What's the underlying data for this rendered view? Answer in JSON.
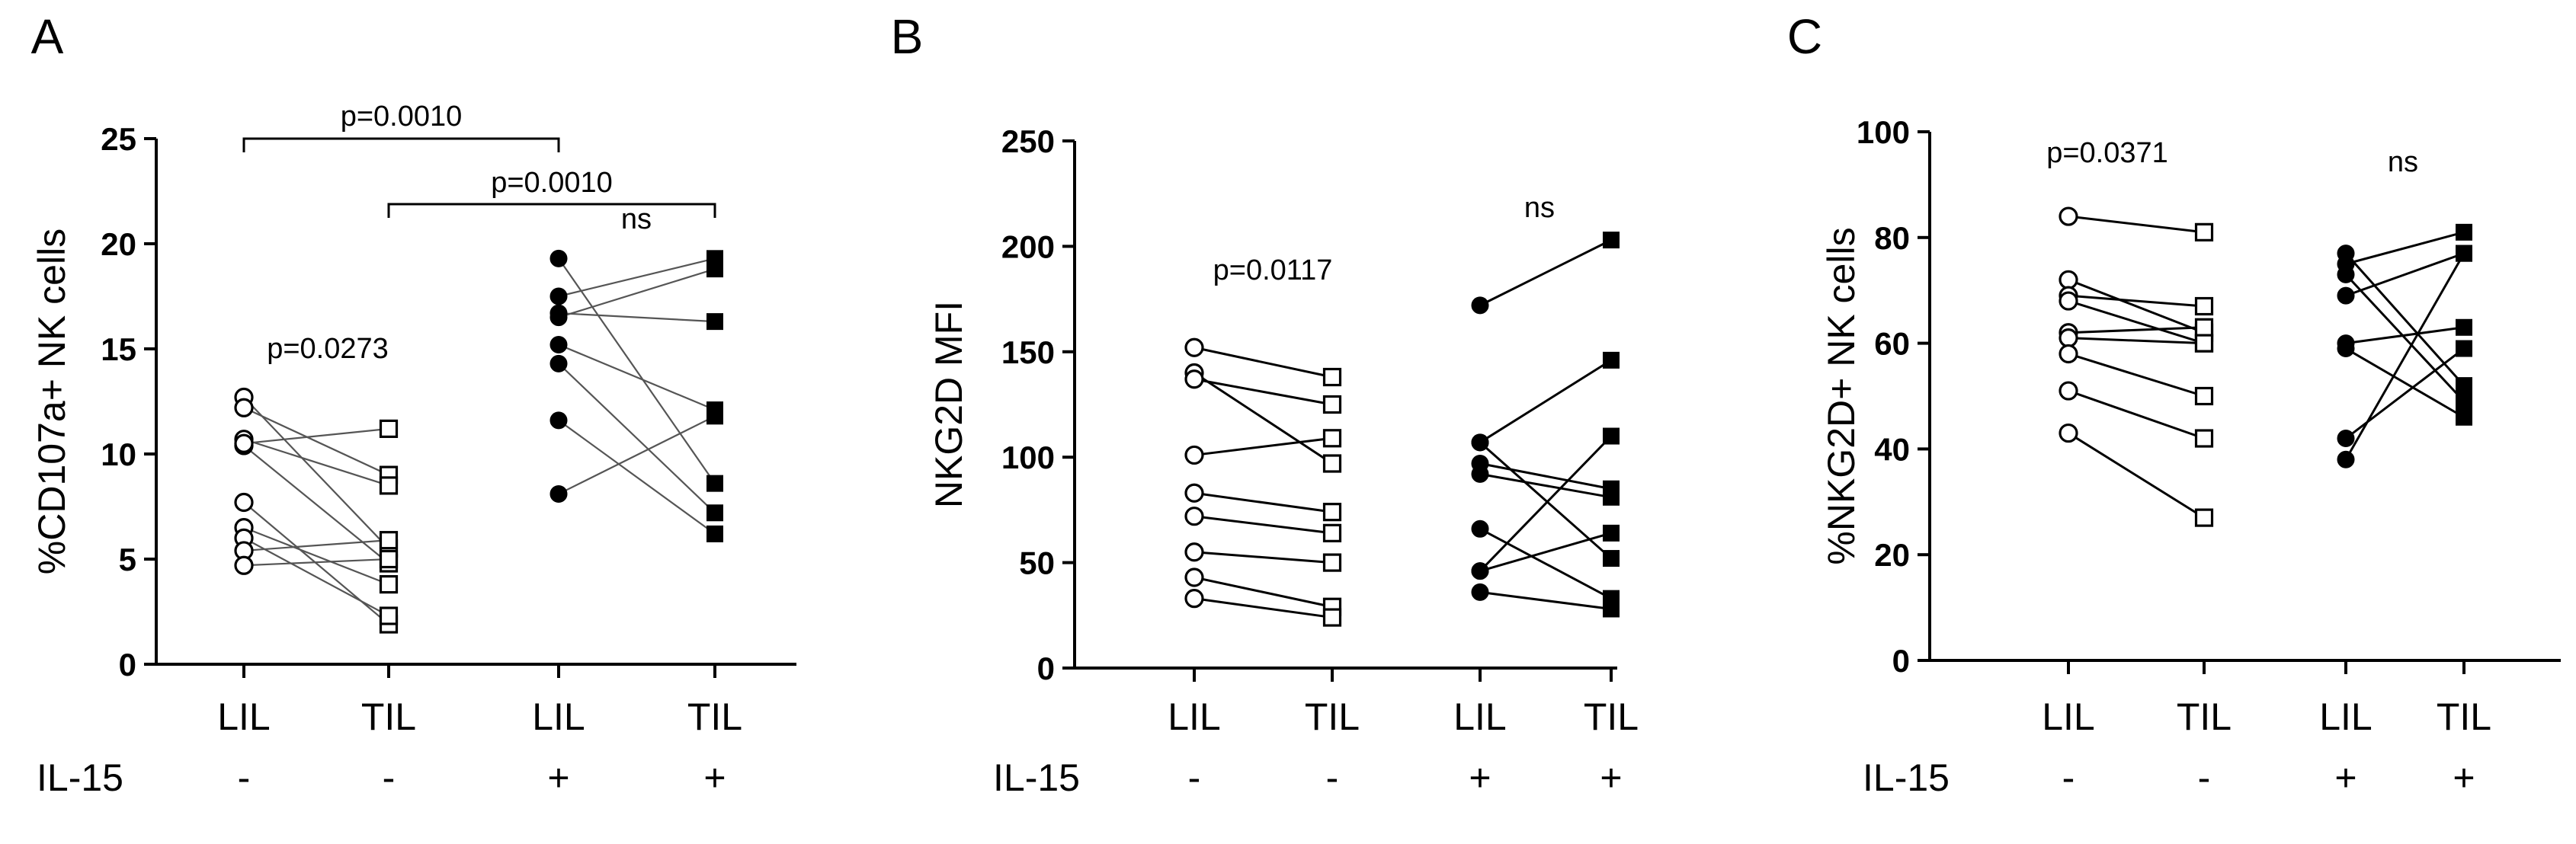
{
  "chart_data": [
    {
      "type": "scatter",
      "panel": "A",
      "ylabel": "%CD107a+ NK cells",
      "ylim": [
        0,
        25
      ],
      "yticks": [
        0,
        5,
        10,
        15,
        20,
        25
      ],
      "categories": [
        "LIL",
        "TIL",
        "LIL",
        "TIL"
      ],
      "treatment_label": "IL-15",
      "treatment": [
        "-",
        "-",
        "+",
        "+"
      ],
      "paired_series": [
        {
          "name": "IL-15 -",
          "x": [
            "LIL",
            "TIL"
          ],
          "markers": [
            "open-circle",
            "open-square"
          ],
          "pairs": [
            [
              12.7,
              5.5
            ],
            [
              12.2,
              9.0
            ],
            [
              10.7,
              8.5
            ],
            [
              10.4,
              4.8
            ],
            [
              7.7,
              1.9
            ],
            [
              6.5,
              3.8
            ],
            [
              6.0,
              2.3
            ],
            [
              5.4,
              5.9
            ],
            [
              4.7,
              5.0
            ],
            [
              10.5,
              11.2
            ]
          ]
        },
        {
          "name": "IL-15 +",
          "x": [
            "LIL",
            "TIL"
          ],
          "markers": [
            "filled-circle",
            "filled-square"
          ],
          "pairs": [
            [
              19.3,
              8.6
            ],
            [
              17.5,
              19.3
            ],
            [
              16.7,
              16.3
            ],
            [
              16.5,
              18.8
            ],
            [
              15.2,
              12.1
            ],
            [
              14.3,
              7.2
            ],
            [
              11.6,
              6.2
            ],
            [
              8.1,
              11.8
            ]
          ]
        }
      ],
      "annotations": [
        {
          "text": "p=0.0010",
          "from": 0,
          "to": 2
        },
        {
          "text": "p=0.0010",
          "from": 1,
          "to": 3
        },
        {
          "text": "p=0.0273",
          "over": [
            0,
            1
          ]
        },
        {
          "text": "ns",
          "over": [
            2,
            3
          ]
        }
      ]
    },
    {
      "type": "scatter",
      "panel": "B",
      "ylabel": "NKG2D MFI",
      "ylim": [
        0,
        250
      ],
      "yticks": [
        0,
        50,
        100,
        150,
        200,
        250
      ],
      "categories": [
        "LIL",
        "TIL",
        "LIL",
        "TIL"
      ],
      "treatment_label": "IL-15",
      "treatment": [
        "-",
        "-",
        "+",
        "+"
      ],
      "paired_series": [
        {
          "name": "IL-15 -",
          "x": [
            "LIL",
            "TIL"
          ],
          "markers": [
            "open-circle",
            "open-square"
          ],
          "pairs": [
            [
              152,
              138
            ],
            [
              140,
              97
            ],
            [
              137,
              125
            ],
            [
              101,
              109
            ],
            [
              83,
              74
            ],
            [
              72,
              64
            ],
            [
              55,
              50
            ],
            [
              43,
              29
            ],
            [
              33,
              24
            ]
          ]
        },
        {
          "name": "IL-15 +",
          "x": [
            "LIL",
            "TIL"
          ],
          "markers": [
            "filled-circle",
            "filled-square"
          ],
          "pairs": [
            [
              172,
              203
            ],
            [
              107,
              146
            ],
            [
              97,
              85
            ],
            [
              92,
              81
            ],
            [
              66,
              33
            ],
            [
              46,
              110
            ],
            [
              36,
              28
            ],
            [
              46,
              64
            ],
            [
              107,
              52
            ]
          ]
        }
      ],
      "annotations": [
        {
          "text": "p=0.0117",
          "over": [
            0,
            1
          ]
        },
        {
          "text": "ns",
          "over": [
            2,
            3
          ]
        }
      ]
    },
    {
      "type": "scatter",
      "panel": "C",
      "ylabel": "%NKG2D+ NK cells",
      "ylim": [
        0,
        100
      ],
      "yticks": [
        0,
        20,
        40,
        60,
        80,
        100
      ],
      "categories": [
        "LIL",
        "TIL",
        "LIL",
        "TIL"
      ],
      "treatment_label": "IL-15",
      "treatment": [
        "-",
        "-",
        "+",
        "+"
      ],
      "paired_series": [
        {
          "name": "IL-15 -",
          "x": [
            "LIL",
            "TIL"
          ],
          "markers": [
            "open-circle",
            "open-square"
          ],
          "pairs": [
            [
              84,
              81
            ],
            [
              72,
              62
            ],
            [
              69,
              67
            ],
            [
              68,
              60
            ],
            [
              62,
              63
            ],
            [
              61,
              60
            ],
            [
              58,
              50
            ],
            [
              51,
              42
            ],
            [
              43,
              27
            ]
          ]
        },
        {
          "name": "IL-15 +",
          "x": [
            "LIL",
            "TIL"
          ],
          "markers": [
            "filled-circle",
            "filled-square"
          ],
          "pairs": [
            [
              77,
              52
            ],
            [
              75,
              81
            ],
            [
              73,
              49
            ],
            [
              69,
              77
            ],
            [
              60,
              63
            ],
            [
              59,
              46
            ],
            [
              42,
              59
            ],
            [
              38,
              77
            ]
          ]
        }
      ],
      "annotations": [
        {
          "text": "p=0.0371",
          "over": [
            0,
            1
          ]
        },
        {
          "text": "ns",
          "over": [
            2,
            3
          ]
        }
      ]
    }
  ],
  "panel_letters": [
    "A",
    "B",
    "C"
  ]
}
